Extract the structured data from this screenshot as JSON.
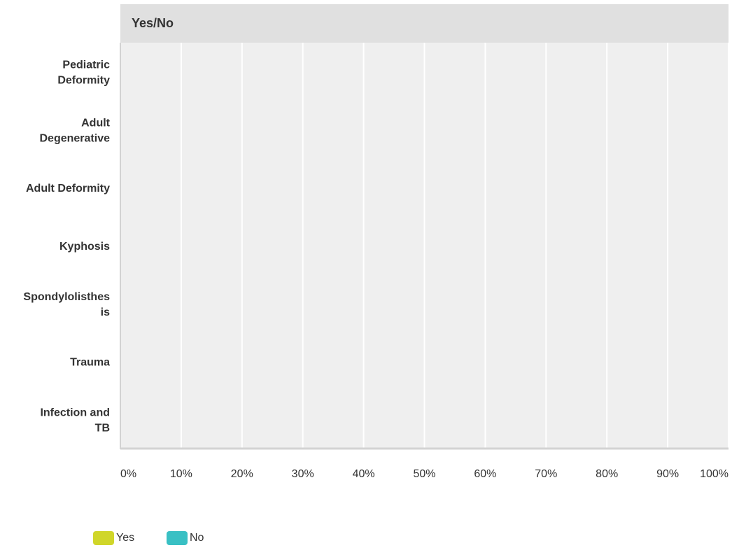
{
  "chart_data": {
    "type": "bar",
    "orientation": "horizontal",
    "stacked": true,
    "title": "Yes/No",
    "categories": [
      [
        "Pediatric",
        "Deformity"
      ],
      [
        "Adult",
        "Degenerative"
      ],
      [
        "Adult Deformity"
      ],
      [
        "Kyphosis"
      ],
      [
        "Spondylolisthes",
        "is"
      ],
      [
        "Trauma"
      ],
      [
        "Infection and",
        "TB"
      ]
    ],
    "series": [
      {
        "name": "Yes",
        "color": "#d0d62a",
        "values": [
          0,
          0,
          0,
          0,
          0,
          0,
          0
        ]
      },
      {
        "name": "No",
        "color": "#39c0c4",
        "values": [
          0,
          0,
          0,
          0,
          0,
          0,
          0
        ]
      }
    ],
    "xticks": [
      "0%",
      "10%",
      "20%",
      "30%",
      "40%",
      "50%",
      "60%",
      "70%",
      "80%",
      "90%",
      "100%"
    ],
    "xlim": [
      0,
      100
    ],
    "xlabel": "",
    "ylabel": "",
    "grid": true,
    "legend_position": "bottom-left",
    "colors": {
      "header_bg": "#e0e0e0",
      "plot_bg": "#efefef",
      "grid": "#ffffff",
      "axis": "#d3d3d3"
    }
  }
}
